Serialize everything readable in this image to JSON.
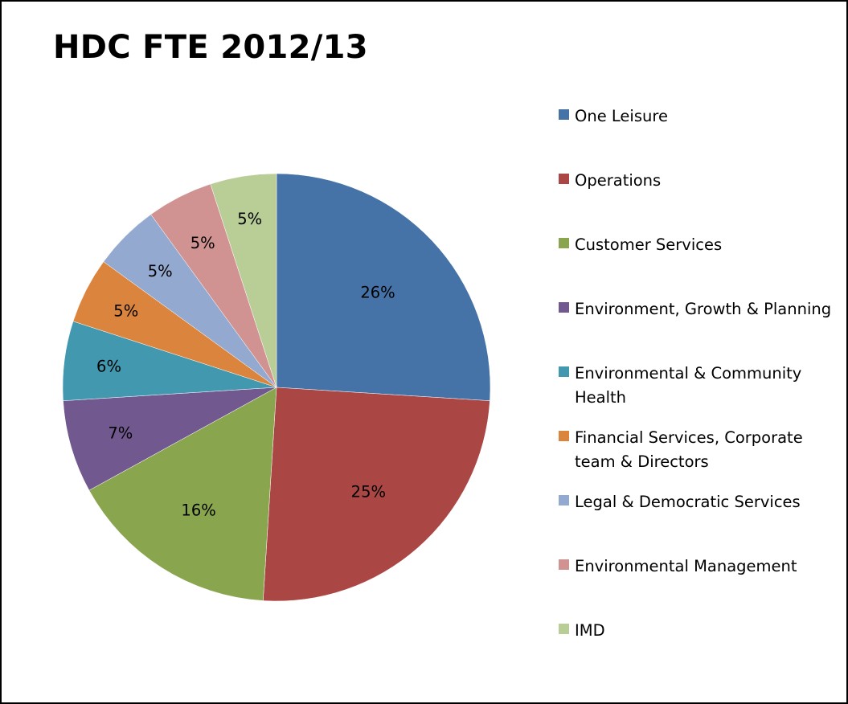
{
  "chart_data": {
    "type": "pie",
    "title": "HDC FTE 2012/13",
    "legend_position": "right",
    "slices": [
      {
        "name": "One Leisure",
        "value": 26,
        "label": "26%",
        "color": "#4572A7"
      },
      {
        "name": "Operations",
        "value": 25,
        "label": "25%",
        "color": "#AA4643"
      },
      {
        "name": "Customer Services",
        "value": 16,
        "label": "16%",
        "color": "#89A54E"
      },
      {
        "name": "Environment, Growth & Planning",
        "value": 7,
        "label": "7%",
        "color": "#71588F"
      },
      {
        "name": "Environmental & Community Health",
        "value": 6,
        "label": "6%",
        "color": "#4198AF"
      },
      {
        "name": "Financial Services, Corporate team & Directors",
        "value": 5,
        "label": "5%",
        "color": "#DB843D"
      },
      {
        "name": "Legal & Democratic Services",
        "value": 5,
        "label": "5%",
        "color": "#93A9CF"
      },
      {
        "name": "Environmental Management",
        "value": 5,
        "label": "5%",
        "color": "#D19392"
      },
      {
        "name": "IMD",
        "value": 5,
        "label": "5%",
        "color": "#B9CD96"
      }
    ]
  }
}
